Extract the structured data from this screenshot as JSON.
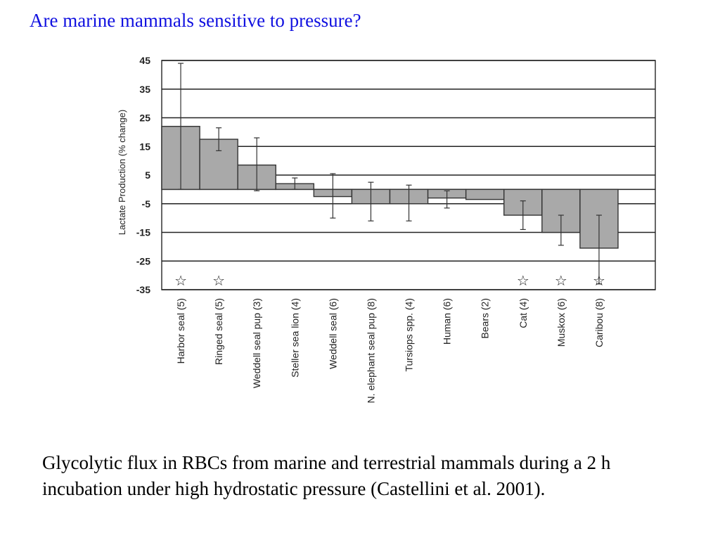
{
  "slide": {
    "title": "Are marine mammals sensitive to pressure?",
    "caption": "Glycolytic flux in RBCs from marine and terrestrial mammals during a 2 h incubation under high hydrostatic pressure (Castellini et al. 2001)."
  },
  "chart_data": {
    "type": "bar",
    "title": "",
    "xlabel": "",
    "ylabel": "Lactate Production (% change)",
    "ylim": [
      -35,
      45
    ],
    "yticks": [
      "45",
      "35",
      "25",
      "15",
      "5",
      "-5",
      "-15",
      "-25",
      "-35"
    ],
    "grid": true,
    "bar_color": "#a9a9a9",
    "categories": [
      "Harbor seal (5)",
      "Ringed seal (5)",
      "Weddell seal pup (3)",
      "Steller sea lion (4)",
      "Weddell seal (6)",
      "N. elephant seal pup (8)",
      "Tursiops spp. (4)",
      "Human (6)",
      "Bears (2)",
      "Cat (4)",
      "Muskox (6)",
      "Caribou (8)"
    ],
    "values": [
      22,
      17.5,
      8.5,
      2,
      -2.5,
      -5,
      -5,
      -3,
      -3.5,
      -9,
      -15,
      -20.5
    ],
    "error_low": [
      0,
      13.5,
      -0.5,
      0,
      -10,
      -11,
      -11,
      -6.5,
      null,
      -14,
      -19.5,
      -33
    ],
    "error_high": [
      44,
      21.5,
      18,
      4,
      5.5,
      2.5,
      1.5,
      -0.5,
      null,
      -4,
      -9,
      -9
    ],
    "significant_marker": "☆",
    "significant": [
      true,
      true,
      false,
      false,
      false,
      false,
      false,
      false,
      false,
      true,
      true,
      true
    ]
  }
}
